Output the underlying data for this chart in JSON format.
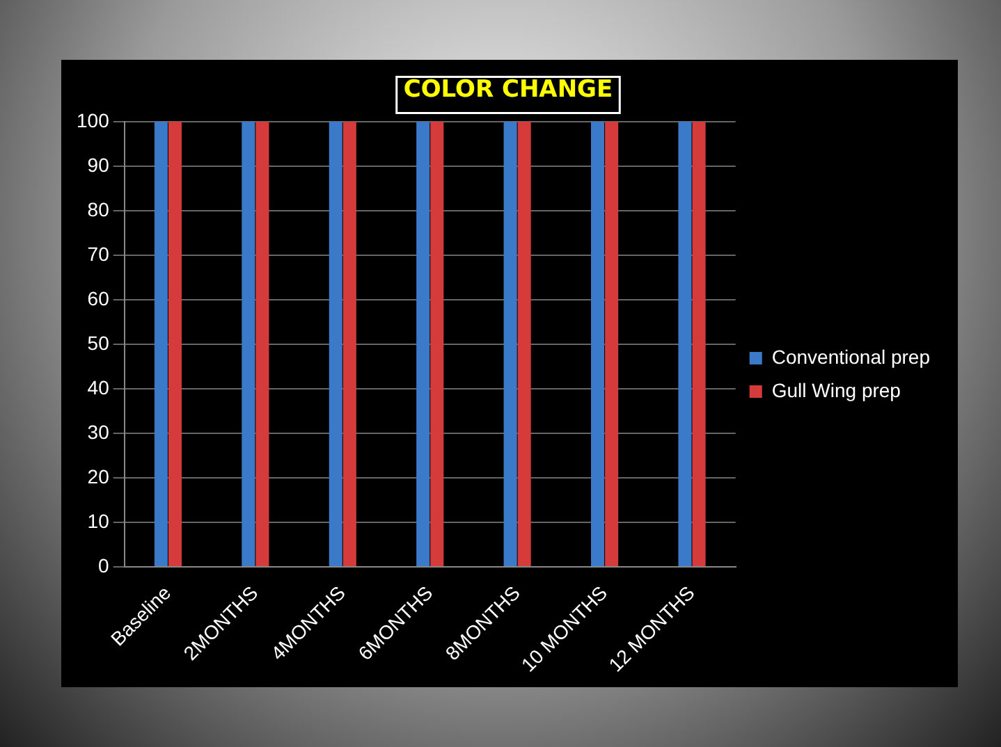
{
  "chart_data": {
    "type": "bar",
    "title": "COLOR CHANGE",
    "categories": [
      "Baseline",
      "2MONTHS",
      "4MONTHS",
      "6MONTHS",
      "8MONTHS",
      "10 MONTHS",
      "12 MONTHS"
    ],
    "series": [
      {
        "name": "Conventional prep",
        "color": "#3b79c9",
        "values": [
          100,
          100,
          100,
          100,
          100,
          100,
          100
        ]
      },
      {
        "name": "Gull Wing prep",
        "color": "#d63b3b",
        "values": [
          100,
          100,
          100,
          100,
          100,
          100,
          100
        ]
      }
    ],
    "ylim": [
      0,
      100
    ],
    "yticks": [
      0,
      10,
      20,
      30,
      40,
      50,
      60,
      70,
      80,
      90,
      100
    ],
    "grid": "y",
    "legend": "right"
  }
}
